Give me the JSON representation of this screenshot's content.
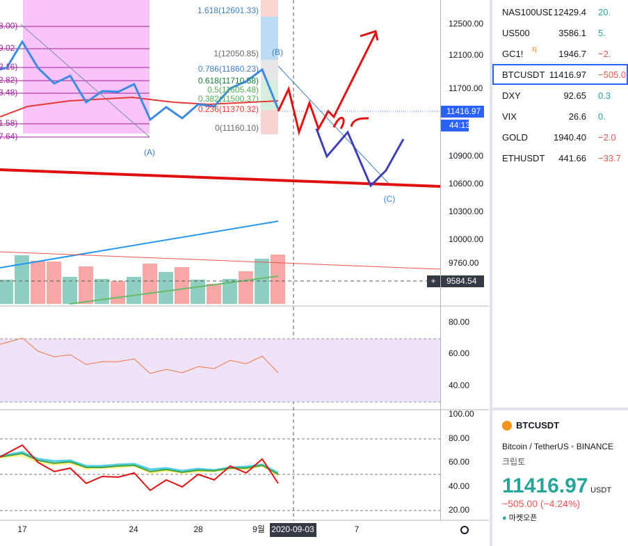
{
  "price_axis": {
    "ticks": [
      "12500.00",
      "12100.00",
      "11700.00",
      "10900.00",
      "10600.00",
      "10300.00",
      "10000.00",
      "9760.00"
    ],
    "last_price": "11416.97",
    "countdown": "44:13",
    "crosshair_price": "9584.54"
  },
  "rsi_axis": {
    "ticks": [
      "80.00",
      "60.00",
      "40.00"
    ]
  },
  "stoch_axis": {
    "ticks": [
      "100.00",
      "80.00",
      "60.00",
      "40.00",
      "20.00"
    ]
  },
  "time_axis": {
    "labels": [
      "17",
      "24",
      "28",
      "9월",
      "7"
    ],
    "crosshair_date": "2020-09-03"
  },
  "fib_levels": [
    "1.618(12601.33)",
    "1(12050.85)",
    "0.786(11860.23)",
    "0.618(11710.58)",
    "0.5(11605.48)",
    "0.382(11500.37)",
    "0.236(11370.32)",
    "0(11160.10)"
  ],
  "left_fib_labels": [
    "8.00)",
    "9.02",
    "2.16)",
    "2.82)",
    "3.48)",
    "1.58)",
    "7.64)"
  ],
  "annotations": [
    "(A)",
    "(B)",
    "(C)"
  ],
  "watchlist": [
    [
      "NAS100USD",
      "12429.4",
      "20."
    ],
    [
      "US500",
      "3586.1",
      "5."
    ],
    [
      "GC1!",
      "1946.7",
      "−2."
    ],
    [
      "BTCUSDT",
      "11416.97",
      "−505.0"
    ],
    [
      "DXY",
      "92.65",
      "0.3"
    ],
    [
      "VIX",
      "26.6",
      "0."
    ],
    [
      "GOLD",
      "1940.40",
      "−2.0"
    ],
    [
      "ETHUSDT",
      "441.66",
      "−33.7"
    ]
  ],
  "watchlist_badge": "지",
  "symbol_panel": {
    "symbol": "BTCUSDT",
    "description": "Bitcoin / TetherUS",
    "exchange": "BINANCE",
    "category": "크립토",
    "price": "11416.97",
    "currency": "USDT",
    "change": "−505.00 (−4.24%)",
    "status": "마켓오픈"
  }
}
